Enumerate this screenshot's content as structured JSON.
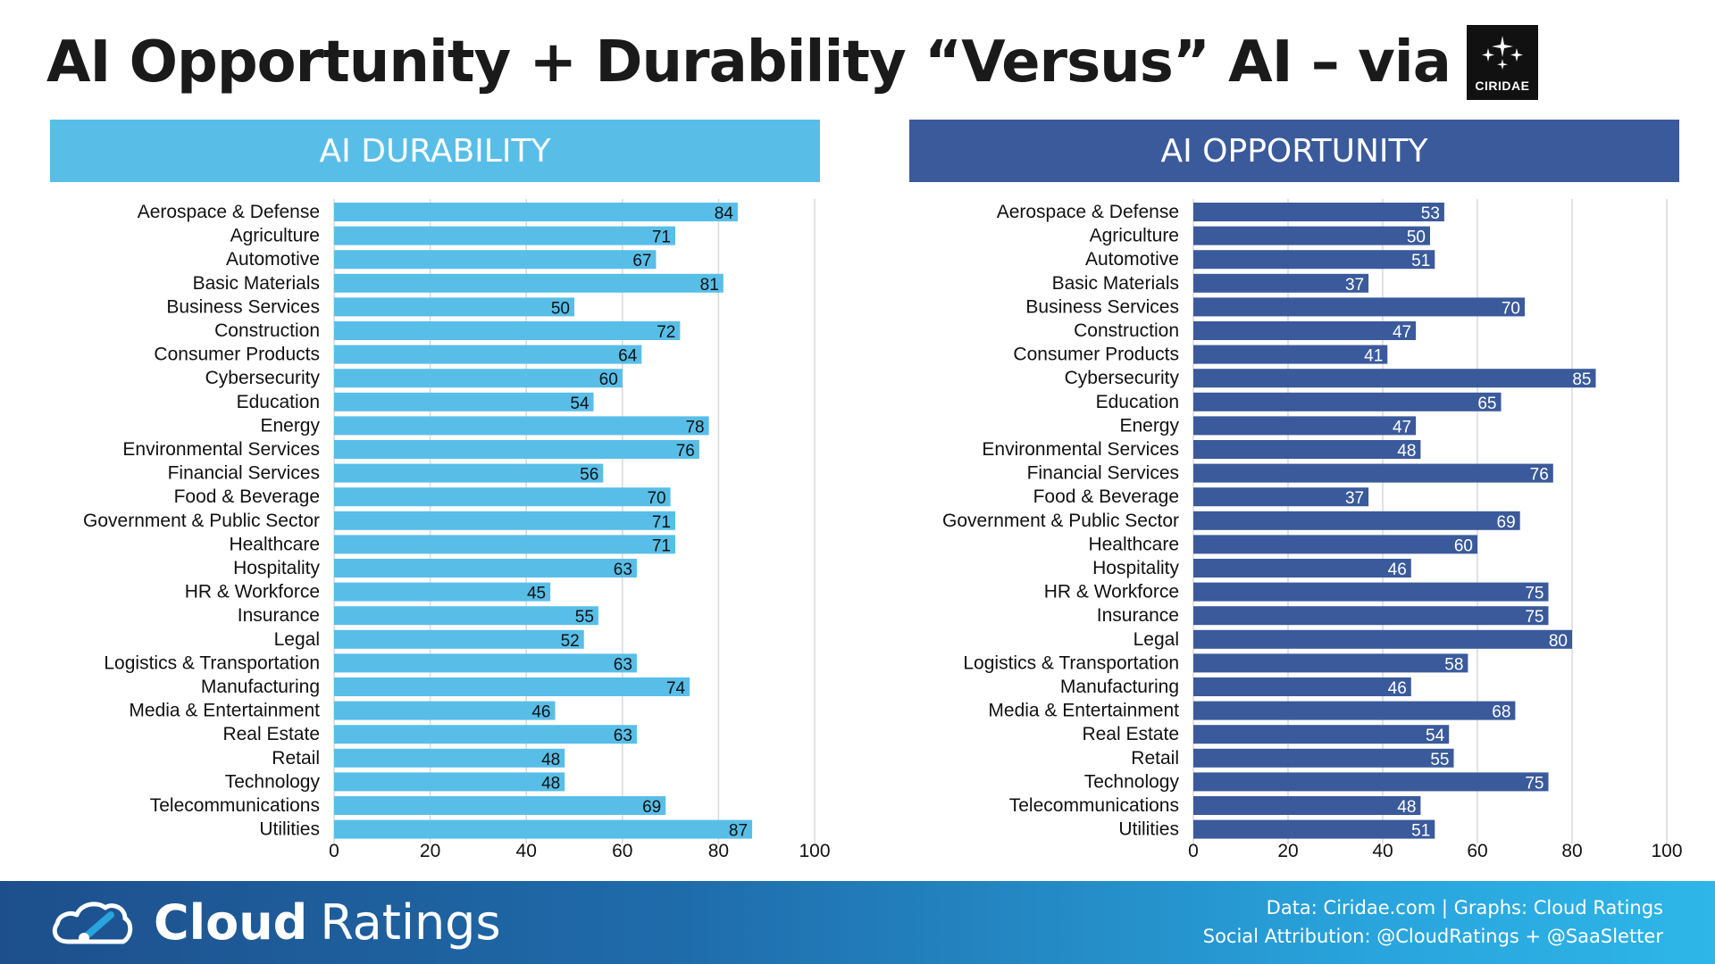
{
  "header": {
    "title": "AI Opportunity + Durability “Versus” AI – via",
    "logo_text": "CIRIDAE"
  },
  "colors": {
    "durability": "#58bee8",
    "opportunity": "#3a5a9b",
    "grid": "#d9d9d9"
  },
  "chart_data": [
    {
      "type": "bar",
      "orientation": "horizontal",
      "title": "AI DURABILITY",
      "categories": [
        "Aerospace & Defense",
        "Agriculture",
        "Automotive",
        "Basic Materials",
        "Business Services",
        "Construction",
        "Consumer Products",
        "Cybersecurity",
        "Education",
        "Energy",
        "Environmental Services",
        "Financial Services",
        "Food & Beverage",
        "Government & Public Sector",
        "Healthcare",
        "Hospitality",
        "HR & Workforce",
        "Insurance",
        "Legal",
        "Logistics & Transportation",
        "Manufacturing",
        "Media & Entertainment",
        "Real Estate",
        "Retail",
        "Technology",
        "Telecommunications",
        "Utilities"
      ],
      "values": [
        84,
        71,
        67,
        81,
        50,
        72,
        64,
        60,
        54,
        78,
        76,
        56,
        70,
        71,
        71,
        63,
        45,
        55,
        52,
        63,
        74,
        46,
        63,
        48,
        48,
        69,
        87
      ],
      "xlim": [
        0,
        100
      ],
      "xticks": [
        "0",
        "20",
        "40",
        "60",
        "80",
        "100"
      ],
      "grid": true
    },
    {
      "type": "bar",
      "orientation": "horizontal",
      "title": "AI OPPORTUNITY",
      "categories": [
        "Aerospace & Defense",
        "Agriculture",
        "Automotive",
        "Basic Materials",
        "Business Services",
        "Construction",
        "Consumer Products",
        "Cybersecurity",
        "Education",
        "Energy",
        "Environmental Services",
        "Financial Services",
        "Food & Beverage",
        "Government & Public Sector",
        "Healthcare",
        "Hospitality",
        "HR & Workforce",
        "Insurance",
        "Legal",
        "Logistics & Transportation",
        "Manufacturing",
        "Media & Entertainment",
        "Real Estate",
        "Retail",
        "Technology",
        "Telecommunications",
        "Utilities"
      ],
      "values": [
        53,
        50,
        51,
        37,
        70,
        47,
        41,
        85,
        65,
        47,
        48,
        76,
        37,
        69,
        60,
        46,
        75,
        75,
        80,
        58,
        46,
        68,
        54,
        55,
        75,
        48,
        51
      ],
      "xlim": [
        0,
        100
      ],
      "xticks": [
        "0",
        "20",
        "40",
        "60",
        "80",
        "100"
      ],
      "grid": true
    }
  ],
  "footer": {
    "brand_bold": "Cloud",
    "brand_light": "Ratings",
    "credit_line1": "Data: Ciridae.com | Graphs: Cloud Ratings",
    "credit_line2": "Social Attribution: @CloudRatings + @SaaSletter"
  }
}
